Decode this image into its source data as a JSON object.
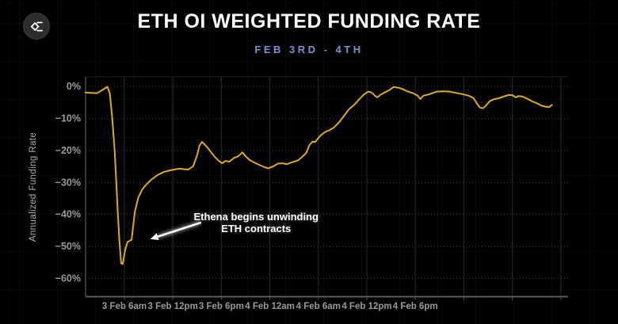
{
  "header": {
    "title": "ETH OI WEIGHTED FUNDING RATE",
    "subtitle": "FEB 3RD - 4TH",
    "logo_name": "sigma-logo"
  },
  "colors": {
    "background": "#000000",
    "title": "#ffffff",
    "subtitle": "#7b93d6",
    "line": "#dcab1e",
    "grid_dotted": "#3b3b3b",
    "grid_vertical": "#2c2c2c",
    "axis_line": "#5a5a5a",
    "tick_label": "#9a9a9a",
    "annotation_text": "#ffffff"
  },
  "chart_data": {
    "type": "line",
    "title": "ETH OI WEIGHTED FUNDING RATE",
    "subtitle": "FEB 3RD - 4TH",
    "xlabel": "",
    "ylabel": "Annualized Funding Rate",
    "y_unit": "%",
    "ylim": [
      -65.7,
      3
    ],
    "y_ticks": [
      {
        "value": 0,
        "label": "0%"
      },
      {
        "value": -10,
        "label": "−10%"
      },
      {
        "value": -20,
        "label": "−20%"
      },
      {
        "value": -30,
        "label": "−30%"
      },
      {
        "value": -40,
        "label": "−40%"
      },
      {
        "value": -50,
        "label": "−50%"
      },
      {
        "value": -60,
        "label": "−60%"
      }
    ],
    "x_unit": "hours since 3 Feb 12am",
    "xlim_hours": [
      1.2,
      60.9
    ],
    "x_ticks": [
      {
        "t": 6,
        "label": "3 Feb 6am"
      },
      {
        "t": 12,
        "label": "3 Feb 12pm"
      },
      {
        "t": 18,
        "label": "3 Feb 6pm"
      },
      {
        "t": 24,
        "label": "4 Feb 12am"
      },
      {
        "t": 30,
        "label": "4 Feb 6am"
      },
      {
        "t": 36,
        "label": "4 Feb 12pm"
      },
      {
        "t": 42,
        "label": "4 Feb 6pm"
      }
    ],
    "x_unlabeled_gridlines_t": [
      48,
      54,
      60
    ],
    "grid": true,
    "legend": "none",
    "series": [
      {
        "name": "ETH OI weighted funding rate (annualized %)",
        "points": [
          [
            1.2,
            -1.9
          ],
          [
            1.9,
            -2.0
          ],
          [
            2.6,
            -2.1
          ],
          [
            3.1,
            -1.4
          ],
          [
            3.6,
            -0.6
          ],
          [
            3.9,
            -0.1
          ],
          [
            4.2,
            -2.1
          ],
          [
            4.5,
            -10.0
          ],
          [
            4.8,
            -20.0
          ],
          [
            5.0,
            -30.0
          ],
          [
            5.2,
            -40.0
          ],
          [
            5.4,
            -48.5
          ],
          [
            5.6,
            -55.3
          ],
          [
            5.8,
            -55.5
          ],
          [
            6.1,
            -51.0
          ],
          [
            6.4,
            -48.6
          ],
          [
            6.9,
            -47.9
          ],
          [
            7.3,
            -39.2
          ],
          [
            7.7,
            -34.9
          ],
          [
            8.2,
            -32.2
          ],
          [
            8.7,
            -30.7
          ],
          [
            9.3,
            -29.2
          ],
          [
            10.1,
            -27.7
          ],
          [
            10.9,
            -26.7
          ],
          [
            11.7,
            -26.2
          ],
          [
            12.8,
            -25.7
          ],
          [
            13.9,
            -26.0
          ],
          [
            14.5,
            -25.0
          ],
          [
            15.0,
            -21.5
          ],
          [
            15.3,
            -18.5
          ],
          [
            15.6,
            -17.3
          ],
          [
            16.0,
            -18.3
          ],
          [
            16.5,
            -19.8
          ],
          [
            17.1,
            -21.8
          ],
          [
            17.7,
            -23.3
          ],
          [
            18.1,
            -24.0
          ],
          [
            18.5,
            -23.3
          ],
          [
            19.0,
            -23.5
          ],
          [
            19.6,
            -22.3
          ],
          [
            20.1,
            -21.8
          ],
          [
            20.6,
            -20.6
          ],
          [
            21.0,
            -21.8
          ],
          [
            21.5,
            -23.0
          ],
          [
            22.1,
            -23.8
          ],
          [
            22.7,
            -24.5
          ],
          [
            23.3,
            -25.2
          ],
          [
            23.8,
            -25.6
          ],
          [
            24.4,
            -25.0
          ],
          [
            25.0,
            -24.1
          ],
          [
            25.6,
            -24.0
          ],
          [
            26.1,
            -24.3
          ],
          [
            26.6,
            -23.8
          ],
          [
            27.0,
            -23.5
          ],
          [
            27.5,
            -23.1
          ],
          [
            28.0,
            -22.0
          ],
          [
            28.5,
            -20.8
          ],
          [
            28.9,
            -18.3
          ],
          [
            29.3,
            -17.2
          ],
          [
            29.6,
            -17.4
          ],
          [
            30.2,
            -15.5
          ],
          [
            30.8,
            -14.3
          ],
          [
            31.4,
            -13.6
          ],
          [
            31.9,
            -12.9
          ],
          [
            32.6,
            -11.1
          ],
          [
            33.2,
            -9.1
          ],
          [
            33.8,
            -7.1
          ],
          [
            34.5,
            -5.6
          ],
          [
            35.1,
            -3.9
          ],
          [
            35.7,
            -2.4
          ],
          [
            36.2,
            -1.6
          ],
          [
            36.6,
            -1.9
          ],
          [
            37.0,
            -2.9
          ],
          [
            37.3,
            -3.4
          ],
          [
            37.7,
            -2.6
          ],
          [
            38.2,
            -1.9
          ],
          [
            38.8,
            -1.1
          ],
          [
            39.3,
            -0.2
          ],
          [
            39.9,
            -0.4
          ],
          [
            40.5,
            -0.9
          ],
          [
            41.1,
            -1.6
          ],
          [
            41.7,
            -2.1
          ],
          [
            42.3,
            -2.9
          ],
          [
            42.6,
            -3.9
          ],
          [
            43.0,
            -2.9
          ],
          [
            43.5,
            -2.6
          ],
          [
            44.0,
            -2.2
          ],
          [
            44.7,
            -1.6
          ],
          [
            45.4,
            -1.5
          ],
          [
            46.2,
            -1.6
          ],
          [
            47.0,
            -2.0
          ],
          [
            47.8,
            -2.4
          ],
          [
            48.6,
            -2.9
          ],
          [
            49.2,
            -3.6
          ],
          [
            49.6,
            -5.3
          ],
          [
            50.0,
            -6.6
          ],
          [
            50.4,
            -6.8
          ],
          [
            50.8,
            -5.8
          ],
          [
            51.2,
            -4.6
          ],
          [
            51.7,
            -4.0
          ],
          [
            52.3,
            -3.7
          ],
          [
            52.9,
            -3.2
          ],
          [
            53.5,
            -2.7
          ],
          [
            54.0,
            -2.7
          ],
          [
            54.4,
            -3.4
          ],
          [
            54.8,
            -3.0
          ],
          [
            55.3,
            -3.2
          ],
          [
            55.9,
            -3.9
          ],
          [
            56.5,
            -4.7
          ],
          [
            57.1,
            -5.3
          ],
          [
            57.6,
            -6.0
          ],
          [
            58.1,
            -6.3
          ],
          [
            58.5,
            -6.5
          ],
          [
            58.9,
            -5.8
          ]
        ]
      }
    ],
    "annotation": {
      "line1": "Ethena begins unwinding",
      "line2": "ETH contracts",
      "text_anchor_t": 22.3,
      "text_anchor_pct": -38.8,
      "arrow_tail": [
        15.4,
        -42.6
      ],
      "arrow_tip": [
        9.2,
        -47.7
      ]
    }
  }
}
